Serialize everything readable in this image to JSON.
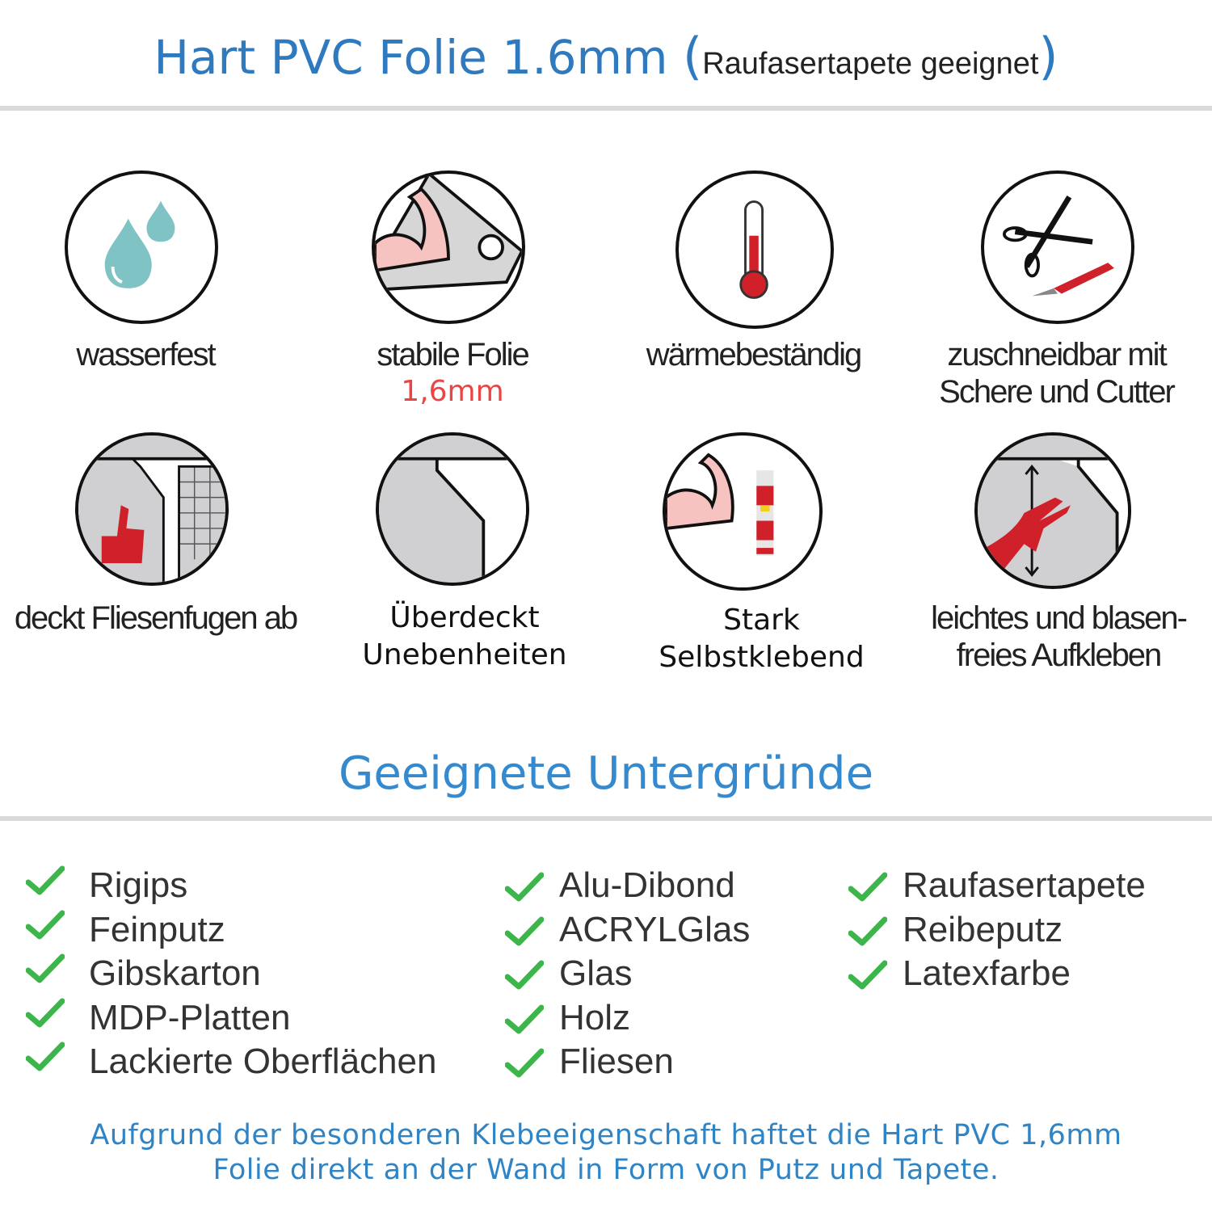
{
  "header": {
    "title": "Hart PVC Folie 1.6mm",
    "subtitle": "Raufasertapete geeignet",
    "open_paren": "(",
    "close_paren": ")"
  },
  "features": [
    {
      "icon": "water-drops-icon",
      "label": "wasserfest"
    },
    {
      "icon": "flexed-arm-roll-icon",
      "label": "stabile Folie",
      "note": "1,6mm"
    },
    {
      "icon": "thermometer-icon",
      "label": "wärmebeständig"
    },
    {
      "icon": "scissors-cutter-icon",
      "label": "zuschneidbar mit",
      "label2": "Schere und Cutter"
    },
    {
      "icon": "thumbs-up-tiles-icon",
      "label": "deckt Fliesenfugen ab"
    },
    {
      "icon": "wall-foil-icon",
      "label": "Überdeckt",
      "label2": "Unebenheiten"
    },
    {
      "icon": "arm-glue-icon",
      "label": "Stark",
      "label2": "Selbstklebend"
    },
    {
      "icon": "hand-smoothing-icon",
      "label": "leichtes und blasen-",
      "label2": "freies Aufkleben"
    }
  ],
  "surfaces": {
    "title": "Geeignete Untergründe",
    "columns": [
      [
        "Rigips",
        "Feinputz",
        "Gibskarton",
        "MDP-Platten",
        "Lackierte Oberflächen"
      ],
      [
        "Alu-Dibond",
        "ACRYLGlas",
        "Glas",
        "Holz",
        "Fliesen"
      ],
      [
        "Raufasertapete",
        "Reibeputz",
        "Latexfarbe"
      ]
    ]
  },
  "footer": {
    "line1": "Aufgrund der besonderen Klebeeigenschaft haftet die Hart PVC 1,6mm",
    "line2": "Folie direkt an der Wand in Form von Putz und Tapete."
  },
  "colors": {
    "title_blue": "#2f7abf",
    "check_green": "#3cb54a",
    "accent_red": "#d0202a",
    "note_red": "#e84646"
  }
}
